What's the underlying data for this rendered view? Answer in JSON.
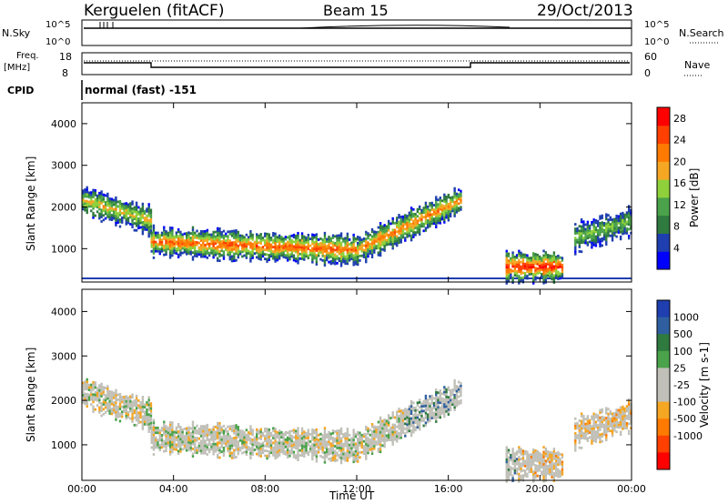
{
  "header": {
    "station": "Kerguelen (fitACF)",
    "beam": "Beam 15",
    "date": "29/Oct/2013"
  },
  "panels": {
    "nsky": {
      "label": "N.Sky",
      "ticks": [
        "10^5",
        "10^0"
      ],
      "right_ticks": [
        "10^5",
        "10^0"
      ],
      "right_label": "N.Search"
    },
    "freq": {
      "label_line1": "Freq.",
      "label_line2": "[MHz]",
      "ticks": [
        "18",
        "8"
      ],
      "right_ticks": [
        "60",
        "0"
      ],
      "right_label": "Nave"
    },
    "cpid": {
      "label": "CPID",
      "text": "normal (fast) -151"
    }
  },
  "colors": {
    "power": [
      "#0000ff",
      "#1f3fb0",
      "#2f7a3f",
      "#4aa24a",
      "#8fd13a",
      "#f5a623",
      "#ff7a00",
      "#ff4000",
      "#ff0000"
    ],
    "velocity_pos": [
      "#1f3fb0",
      "#2f5fa0",
      "#2f7a3f",
      "#4aa24a"
    ],
    "velocity_ground": "#c0c0b8",
    "velocity_neg": [
      "#f5a623",
      "#ff7a00",
      "#ff4000",
      "#ff0000"
    ]
  },
  "chart_data": [
    {
      "type": "heatmap",
      "name": "power",
      "ylabel": "Slant Range [km]",
      "yticks": [
        "1000",
        "2000",
        "3000",
        "4000"
      ],
      "ylim": [
        200,
        4500
      ],
      "colorbar": {
        "label": "Power [dB]",
        "ticks": [
          "4",
          "8",
          "12",
          "16",
          "20",
          "24",
          "28"
        ],
        "range": [
          0,
          30
        ]
      },
      "echo_bands": [
        {
          "t_start": 0.0,
          "t_end": 3.0,
          "range_start": 2200,
          "range_end": 1700,
          "power": 18
        },
        {
          "t_start": 3.0,
          "t_end": 12.0,
          "range_start": 1200,
          "range_end": 1000,
          "power": 24
        },
        {
          "t_start": 12.0,
          "t_end": 16.5,
          "range_start": 1000,
          "range_end": 2200,
          "power": 22
        },
        {
          "t_start": 18.5,
          "t_end": 21.0,
          "range_start": 600,
          "range_end": 600,
          "power": 28
        },
        {
          "t_start": 21.5,
          "t_end": 24.0,
          "range_start": 1300,
          "range_end": 1700,
          "power": 14
        }
      ]
    },
    {
      "type": "heatmap",
      "name": "velocity",
      "ylabel": "Slant Range [km]",
      "xlabel": "Time UT",
      "xticks": [
        "00:00",
        "04:00",
        "08:00",
        "12:00",
        "16:00",
        "20:00",
        "00:00"
      ],
      "xlim": [
        0,
        24
      ],
      "yticks": [
        "1000",
        "2000",
        "3000",
        "4000"
      ],
      "ylim": [
        200,
        4500
      ],
      "colorbar": {
        "label": "Velocity [m s-1]",
        "ticks": [
          "1000",
          "500",
          "100",
          "25",
          "-25",
          "-100",
          "-500",
          "-1000"
        ]
      }
    }
  ]
}
